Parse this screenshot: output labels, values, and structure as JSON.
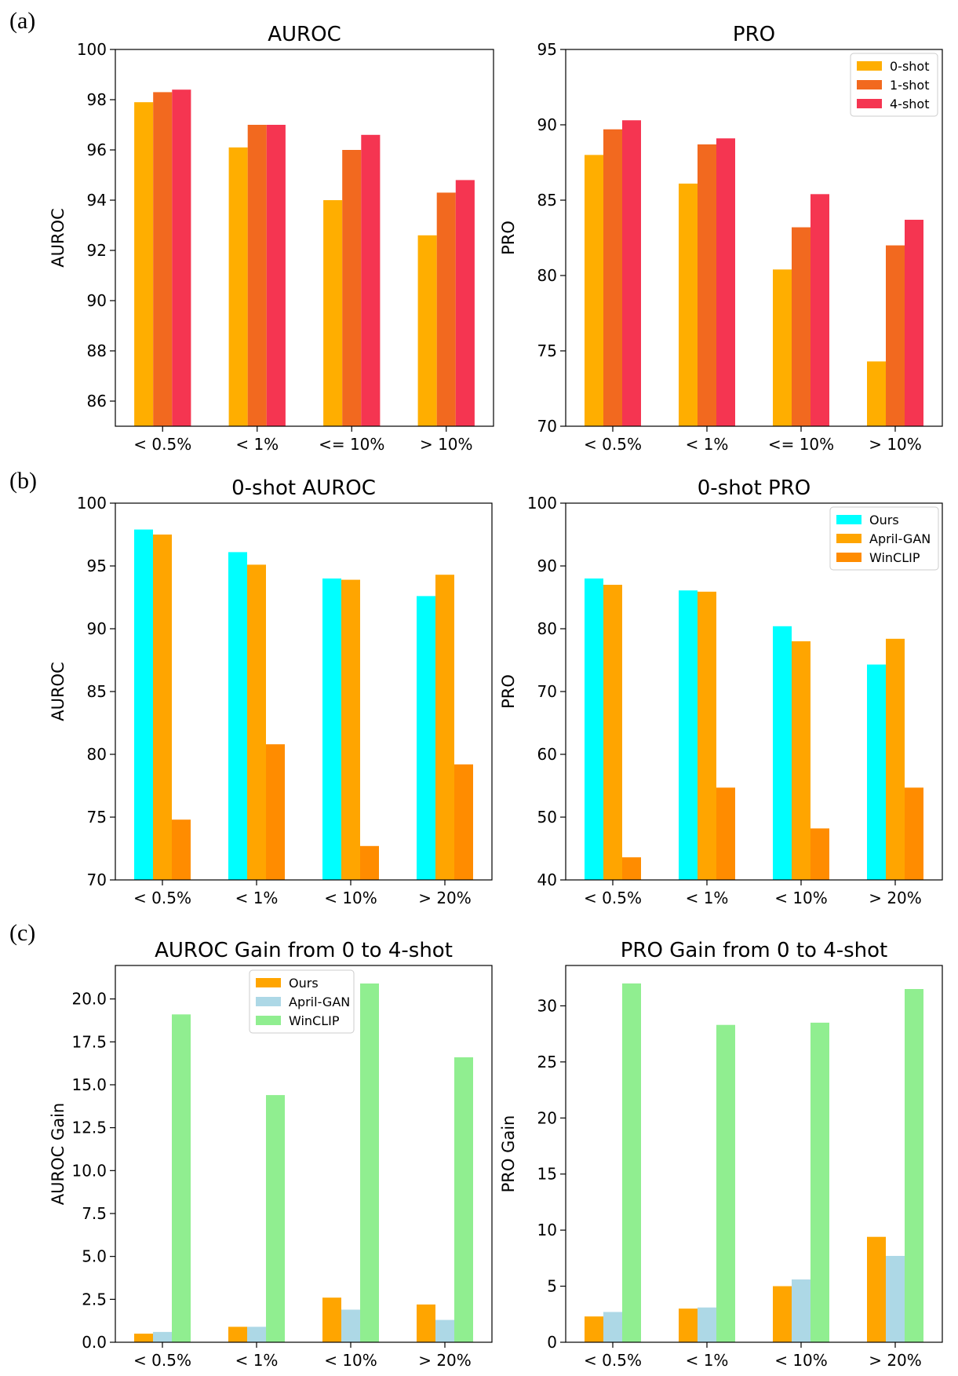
{
  "panel_labels": [
    "(a)",
    "(b)",
    "(c)"
  ],
  "chart_data": [
    {
      "type": "bar",
      "title": "AUROC",
      "xlabel": "",
      "ylabel": "AUROC",
      "categories": [
        "< 0.5%",
        "< 1%",
        "<= 10%",
        "> 10%"
      ],
      "ylim": [
        85,
        100
      ],
      "yticks": [
        86,
        88,
        90,
        92,
        94,
        96,
        98,
        100
      ],
      "legend": null,
      "series": [
        {
          "name": "0-shot",
          "color": "#FFAE00",
          "values": [
            97.9,
            96.1,
            94.0,
            92.6
          ]
        },
        {
          "name": "1-shot",
          "color": "#F2691F",
          "values": [
            98.3,
            97.0,
            96.0,
            94.3
          ]
        },
        {
          "name": "4-shot",
          "color": "#F53551",
          "values": [
            98.4,
            97.0,
            96.6,
            94.8
          ]
        }
      ]
    },
    {
      "type": "bar",
      "title": "PRO",
      "xlabel": "",
      "ylabel": "PRO",
      "categories": [
        "< 0.5%",
        "< 1%",
        "<= 10%",
        "> 10%"
      ],
      "ylim": [
        70,
        95
      ],
      "yticks": [
        70,
        75,
        80,
        85,
        90,
        95
      ],
      "legend": "top-right",
      "series": [
        {
          "name": "0-shot",
          "color": "#FFAE00",
          "values": [
            88.0,
            86.1,
            80.4,
            74.3
          ]
        },
        {
          "name": "1-shot",
          "color": "#F2691F",
          "values": [
            89.7,
            88.7,
            83.2,
            82.0
          ]
        },
        {
          "name": "4-shot",
          "color": "#F53551",
          "values": [
            90.3,
            89.1,
            85.4,
            83.7
          ]
        }
      ]
    },
    {
      "type": "bar",
      "title": "0-shot AUROC",
      "xlabel": "",
      "ylabel": "AUROC",
      "categories": [
        "< 0.5%",
        "< 1%",
        "< 10%",
        "> 20%"
      ],
      "ylim": [
        70,
        100
      ],
      "yticks": [
        70,
        75,
        80,
        85,
        90,
        95,
        100
      ],
      "legend": null,
      "series": [
        {
          "name": "Ours",
          "color": "#00FFFF",
          "values": [
            97.9,
            96.1,
            94.0,
            92.6
          ]
        },
        {
          "name": "April-GAN",
          "color": "#FFA500",
          "values": [
            97.5,
            95.1,
            93.9,
            94.3
          ]
        },
        {
          "name": "WinCLIP",
          "color": "#FF8C00",
          "values": [
            74.8,
            80.8,
            72.7,
            79.2
          ]
        }
      ]
    },
    {
      "type": "bar",
      "title": "0-shot PRO",
      "xlabel": "",
      "ylabel": "PRO",
      "categories": [
        "< 0.5%",
        "< 1%",
        "< 10%",
        "> 20%"
      ],
      "ylim": [
        40,
        100
      ],
      "yticks": [
        40,
        50,
        60,
        70,
        80,
        90,
        100
      ],
      "legend": "top-right",
      "series": [
        {
          "name": "Ours",
          "color": "#00FFFF",
          "values": [
            88.0,
            86.1,
            80.4,
            74.3
          ]
        },
        {
          "name": "April-GAN",
          "color": "#FFA500",
          "values": [
            87.0,
            85.9,
            78.0,
            78.4
          ]
        },
        {
          "name": "WinCLIP",
          "color": "#FF8C00",
          "values": [
            43.6,
            54.7,
            48.2,
            54.7
          ]
        }
      ]
    },
    {
      "type": "bar",
      "title": "AUROC Gain from 0 to 4-shot",
      "xlabel": "",
      "ylabel": "AUROC Gain",
      "categories": [
        "< 0.5%",
        "< 1%",
        "< 10%",
        "> 20%"
      ],
      "ylim": [
        0,
        21.95
      ],
      "yticks": [
        0.0,
        2.5,
        5.0,
        7.5,
        10.0,
        12.5,
        15.0,
        17.5,
        20.0
      ],
      "ytick_labels": [
        "0.0",
        "2.5",
        "5.0",
        "7.5",
        "10.0",
        "12.5",
        "15.0",
        "17.5",
        "20.0"
      ],
      "legend": "top-center",
      "series": [
        {
          "name": "Ours",
          "color": "#FFA500",
          "values": [
            0.5,
            0.9,
            2.6,
            2.2
          ]
        },
        {
          "name": "April-GAN",
          "color": "#ADD8E6",
          "values": [
            0.6,
            0.9,
            1.9,
            1.3
          ]
        },
        {
          "name": "WinCLIP",
          "color": "#90EE90",
          "values": [
            19.1,
            14.4,
            20.9,
            16.6
          ]
        }
      ]
    },
    {
      "type": "bar",
      "title": "PRO Gain from 0 to 4-shot",
      "xlabel": "",
      "ylabel": "PRO Gain",
      "categories": [
        "< 0.5%",
        "< 1%",
        "< 10%",
        "> 20%"
      ],
      "ylim": [
        0,
        33.6
      ],
      "yticks": [
        0,
        5,
        10,
        15,
        20,
        25,
        30
      ],
      "legend": null,
      "series": [
        {
          "name": "Ours",
          "color": "#FFA500",
          "values": [
            2.3,
            3.0,
            5.0,
            9.4
          ]
        },
        {
          "name": "April-GAN",
          "color": "#ADD8E6",
          "values": [
            2.7,
            3.1,
            5.6,
            7.7
          ]
        },
        {
          "name": "WinCLIP",
          "color": "#90EE90",
          "values": [
            32.0,
            28.3,
            28.5,
            31.5
          ]
        }
      ]
    }
  ]
}
